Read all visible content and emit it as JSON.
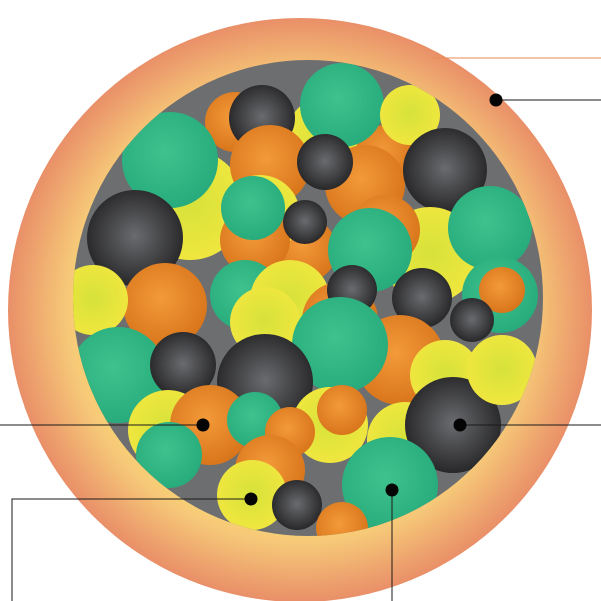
{
  "diagram": {
    "colors": {
      "background": "#ffffff",
      "outer_shell_edge": "#e98f68",
      "outer_shell_center": "#ffe46b",
      "core": "#6d6e70",
      "orange_bead": "#e8821f",
      "yellow_bead": "#e6e13a",
      "green_bead": "#2eb884",
      "black_bead": "#3c3c3e",
      "leader_line": "#1a1a1a",
      "accent_line": "#e98a55"
    },
    "bead_types": [
      "orange",
      "yellow",
      "green",
      "black"
    ],
    "callouts": [
      {
        "target": "outer-shell",
        "marker": "dot"
      },
      {
        "target": "orange-bead",
        "marker": "dot"
      },
      {
        "target": "black-bead",
        "marker": "dot"
      },
      {
        "target": "yellow-bead",
        "marker": "dot"
      },
      {
        "target": "green-bead",
        "marker": "dot"
      }
    ]
  }
}
